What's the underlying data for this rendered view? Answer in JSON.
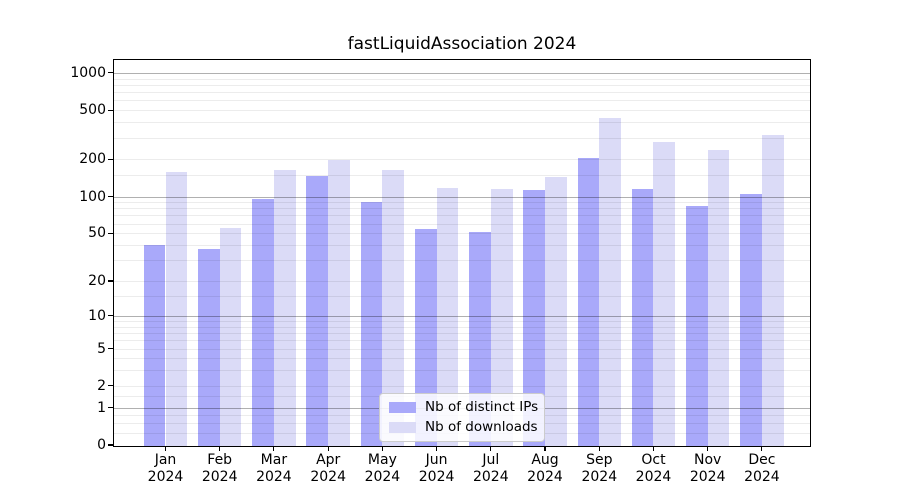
{
  "title": "fastLiquidAssociation 2024",
  "legend": {
    "items": [
      {
        "label": "Nb of distinct IPs",
        "color": "#a9a9fa"
      },
      {
        "label": "Nb of downloads",
        "color": "#dbdbf7"
      }
    ]
  },
  "colors": {
    "distinct_ips_bar": "#a9a9fa",
    "downloads_bar": "#dbdbf7",
    "major_gridline": "#b0b0b0",
    "minor_gridline": "#ebebeb",
    "axis_frame": "#000000"
  },
  "chart_data": {
    "type": "bar",
    "title": "fastLiquidAssociation 2024",
    "categories": [
      "Jan 2024",
      "Feb 2024",
      "Mar 2024",
      "Apr 2024",
      "May 2024",
      "Jun 2024",
      "Jul 2024",
      "Aug 2024",
      "Sep 2024",
      "Oct 2024",
      "Nov 2024",
      "Dec 2024"
    ],
    "series": [
      {
        "name": "Nb of distinct IPs",
        "color": "#a9a9fa",
        "values": [
          41,
          38,
          97,
          150,
          92,
          55,
          52,
          115,
          210,
          118,
          86,
          106
        ]
      },
      {
        "name": "Nb of downloads",
        "color": "#dbdbf7",
        "values": [
          161,
          56,
          167,
          201,
          168,
          120,
          118,
          147,
          438,
          283,
          244,
          323
        ]
      }
    ],
    "xlabel": "",
    "ylabel": "",
    "y_axis": {
      "scale": "log10(value+1)",
      "ylim": [
        0,
        1100
      ],
      "ticks": [
        0,
        1,
        2,
        5,
        10,
        20,
        50,
        100,
        200,
        500,
        1000
      ],
      "tick_labels": [
        "0",
        "1",
        "2",
        "5",
        "10",
        "20",
        "50",
        "100",
        "200",
        "500",
        "1000"
      ],
      "major_gridlines": [
        1,
        10,
        100,
        1000
      ],
      "minor_gridlines": [
        0.25,
        0.5,
        0.75,
        1.5,
        2,
        3,
        4,
        5,
        6,
        7,
        8,
        9,
        15,
        20,
        30,
        40,
        50,
        60,
        70,
        80,
        90,
        150,
        200,
        300,
        400,
        500,
        600,
        700,
        800,
        900
      ]
    },
    "grid": true,
    "legend_position": "lower-center-inside"
  }
}
